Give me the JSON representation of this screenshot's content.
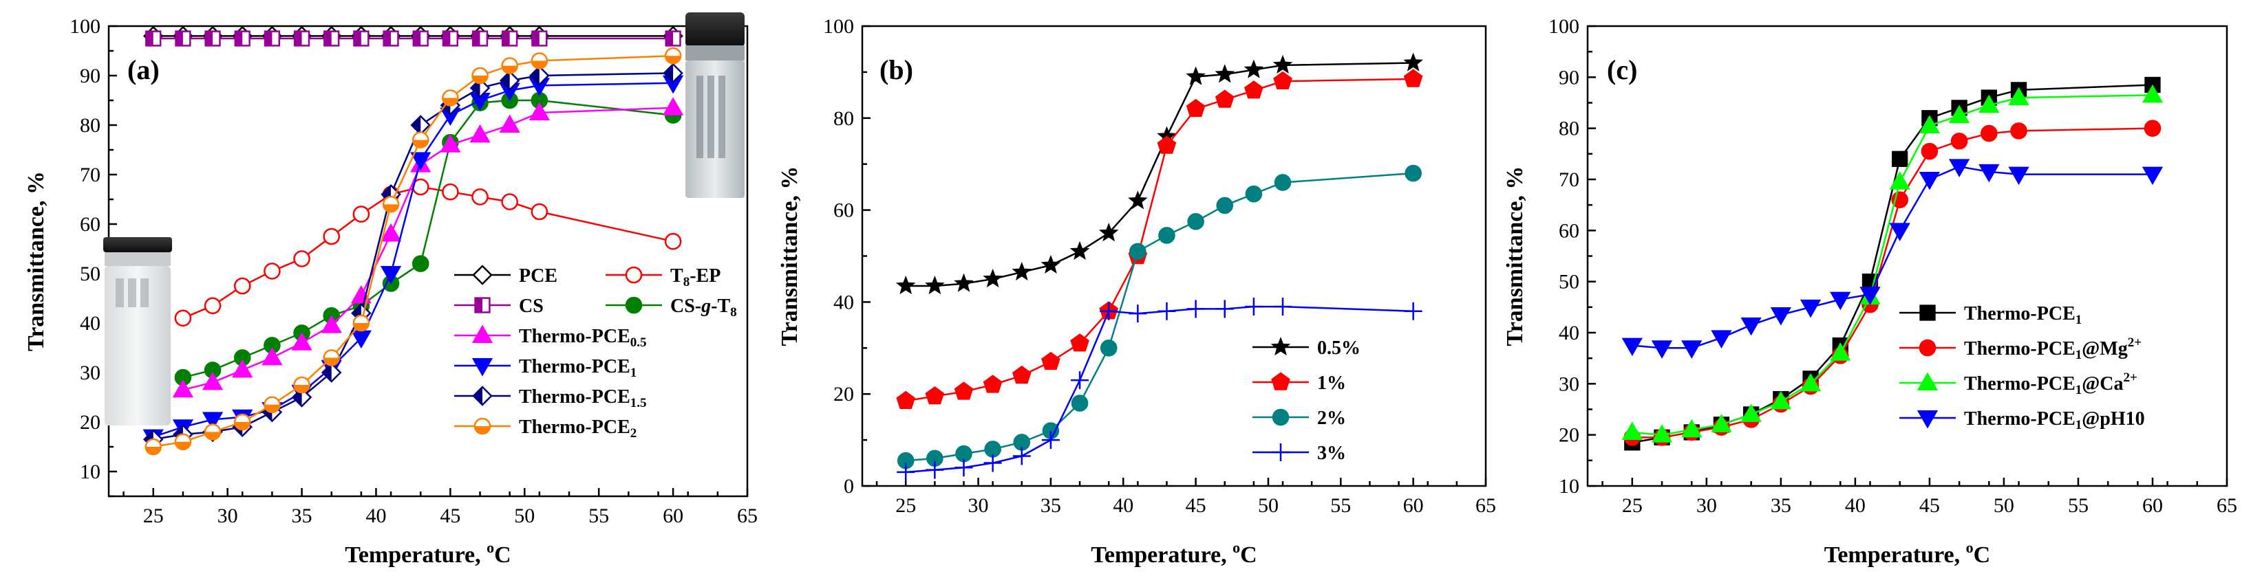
{
  "chart_data": [
    {
      "type": "line",
      "panel_label": "(a)",
      "xlabel": "Temperature, ",
      "xlabel_unit": "oC",
      "ylabel": "Transmittance, %",
      "xlim": [
        22,
        65
      ],
      "ylim": [
        5,
        100
      ],
      "xticks": [
        25,
        30,
        35,
        40,
        45,
        50,
        55,
        60,
        65
      ],
      "yticks": [
        10,
        20,
        30,
        40,
        50,
        60,
        70,
        80,
        90,
        100
      ],
      "legend_position": "center-right",
      "series": [
        {
          "name": "PCE",
          "color": "#000000",
          "marker": "diamond-open",
          "x": [
            25,
            27,
            29,
            31,
            33,
            35,
            37,
            39,
            41,
            43,
            45,
            47,
            49,
            51,
            60
          ],
          "y": [
            98,
            98,
            98,
            98,
            98,
            98,
            98,
            98,
            98,
            98,
            98,
            98,
            98,
            98,
            98
          ]
        },
        {
          "name": "T8-EP",
          "color": "#ff0000",
          "marker": "circle-open",
          "x": [
            27,
            29,
            31,
            33,
            35,
            37,
            39,
            41,
            43,
            45,
            47,
            49,
            51,
            60
          ],
          "y": [
            41,
            43.5,
            47.5,
            50.5,
            53,
            57.5,
            62,
            66,
            67.5,
            66.5,
            65.5,
            64.5,
            62.5,
            56.5
          ]
        },
        {
          "name": "CS",
          "color": "#990099",
          "marker": "square-half",
          "x": [
            25,
            27,
            29,
            31,
            33,
            35,
            37,
            39,
            41,
            43,
            45,
            47,
            49,
            51,
            60
          ],
          "y": [
            97.5,
            97.5,
            97.5,
            97.5,
            97.5,
            97.5,
            97.5,
            97.5,
            97.5,
            97.5,
            97.5,
            97.5,
            97.5,
            97.5,
            97.5
          ]
        },
        {
          "name": "CS-g-T8",
          "color": "#008000",
          "marker": "circle-filled",
          "x": [
            27,
            29,
            31,
            33,
            35,
            37,
            39,
            41,
            43,
            45,
            47,
            49,
            51,
            60
          ],
          "y": [
            29,
            30.5,
            33,
            35.5,
            38,
            41.5,
            43.5,
            48,
            52,
            76.5,
            84.5,
            85,
            85,
            82
          ]
        },
        {
          "name": "Thermo-PCE0.5",
          "color": "#ff00ff",
          "marker": "triangle-up",
          "x": [
            27,
            29,
            31,
            33,
            35,
            37,
            39,
            41,
            43,
            45,
            47,
            49,
            51,
            60
          ],
          "y": [
            26.5,
            28,
            30.5,
            33,
            36,
            39.5,
            45.5,
            58,
            72,
            76,
            78,
            80,
            82.5,
            83.5
          ]
        },
        {
          "name": "Thermo-PCE1",
          "color": "#0000ff",
          "marker": "triangle-down",
          "x": [
            25,
            27,
            29,
            31,
            33,
            35,
            37,
            39,
            41,
            43,
            45,
            47,
            49,
            51,
            60
          ],
          "y": [
            17,
            19,
            20.5,
            21,
            22.5,
            26,
            31,
            37,
            50,
            73,
            82,
            85,
            87,
            88,
            88.5
          ]
        },
        {
          "name": "Thermo-PCE1.5",
          "color": "#000080",
          "marker": "diamond-half",
          "x": [
            25,
            27,
            29,
            31,
            33,
            35,
            37,
            39,
            41,
            43,
            45,
            47,
            49,
            51,
            60
          ],
          "y": [
            16.5,
            17.5,
            18,
            19,
            22,
            25,
            30,
            42,
            66,
            80,
            84,
            87.5,
            89,
            90,
            90.5
          ]
        },
        {
          "name": "Thermo-PCE2",
          "color": "#ff8000",
          "marker": "circle-half",
          "x": [
            25,
            27,
            29,
            31,
            33,
            35,
            37,
            39,
            41,
            43,
            45,
            47,
            49,
            51,
            60
          ],
          "y": [
            15,
            16,
            18,
            20,
            23.5,
            27.5,
            33,
            40,
            64,
            77,
            85.5,
            90,
            92,
            93,
            94
          ]
        }
      ]
    },
    {
      "type": "line",
      "panel_label": "(b)",
      "xlabel": "Temperature, ",
      "xlabel_unit": "oC",
      "ylabel": "Transmittance,  %",
      "xlim": [
        22,
        65
      ],
      "ylim": [
        0,
        100
      ],
      "xticks": [
        25,
        30,
        35,
        40,
        45,
        50,
        55,
        60,
        65
      ],
      "yticks": [
        0,
        20,
        40,
        60,
        80,
        100
      ],
      "legend_position": "center-right",
      "series": [
        {
          "name": "0.5%",
          "color": "#000000",
          "marker": "star",
          "x": [
            25,
            27,
            29,
            31,
            33,
            35,
            37,
            39,
            41,
            43,
            45,
            47,
            49,
            51,
            60
          ],
          "y": [
            43.5,
            43.5,
            44,
            45,
            46.5,
            48,
            51,
            55,
            62,
            76,
            89,
            89.5,
            90.5,
            91.5,
            92
          ]
        },
        {
          "name": "1%",
          "color": "#ff0000",
          "marker": "pentagon",
          "x": [
            25,
            27,
            29,
            31,
            33,
            35,
            37,
            39,
            41,
            43,
            45,
            47,
            49,
            51,
            60
          ],
          "y": [
            18.5,
            19.5,
            20.5,
            22,
            24,
            27,
            31,
            38,
            50,
            74,
            82,
            84,
            86,
            88,
            88.5
          ]
        },
        {
          "name": "2%",
          "color": "#008080",
          "marker": "circle-filled",
          "x": [
            25,
            27,
            29,
            31,
            33,
            35,
            37,
            39,
            41,
            43,
            45,
            47,
            49,
            51,
            60
          ],
          "y": [
            5.5,
            6,
            7,
            8,
            9.5,
            12,
            18,
            30,
            51,
            54.5,
            57.5,
            61,
            63.5,
            66,
            68
          ]
        },
        {
          "name": "3%",
          "color": "#0000ff",
          "marker": "plus",
          "x": [
            25,
            27,
            29,
            31,
            33,
            35,
            37,
            39,
            41,
            43,
            45,
            47,
            49,
            51,
            60
          ],
          "y": [
            3,
            3.5,
            4,
            5,
            6.5,
            10,
            23,
            38,
            37.5,
            38,
            38.5,
            38.5,
            39,
            39,
            38
          ]
        }
      ]
    },
    {
      "type": "line",
      "panel_label": "(c)",
      "xlabel": "Temperature, ",
      "xlabel_unit": "oC",
      "ylabel": "Transmittance, %",
      "xlim": [
        22,
        65
      ],
      "ylim": [
        10,
        100
      ],
      "xticks": [
        25,
        30,
        35,
        40,
        45,
        50,
        55,
        60,
        65
      ],
      "yticks": [
        10,
        20,
        30,
        40,
        50,
        60,
        70,
        80,
        90,
        100
      ],
      "legend_position": "center-right",
      "series": [
        {
          "name": "Thermo-PCE1",
          "color": "#000000",
          "marker": "square-filled",
          "x": [
            25,
            27,
            29,
            31,
            33,
            35,
            37,
            39,
            41,
            43,
            45,
            47,
            49,
            51,
            60
          ],
          "y": [
            18.5,
            19.5,
            20.5,
            22,
            24,
            27,
            31,
            37.5,
            50,
            74,
            82,
            84,
            86,
            87.5,
            88.5
          ]
        },
        {
          "name": "Thermo-PCE1@Mg2+",
          "color": "#ff0000",
          "marker": "circle-filled",
          "x": [
            25,
            27,
            29,
            31,
            33,
            35,
            37,
            39,
            41,
            43,
            45,
            47,
            49,
            51,
            60
          ],
          "y": [
            19.5,
            19.5,
            20.5,
            21.5,
            23,
            26,
            29.5,
            35.5,
            45.5,
            66,
            75.5,
            77.5,
            79,
            79.5,
            80
          ]
        },
        {
          "name": "Thermo-PCE1@Ca2+",
          "color": "#00ff00",
          "marker": "triangle-up",
          "x": [
            25,
            27,
            29,
            31,
            33,
            35,
            37,
            39,
            41,
            43,
            45,
            47,
            49,
            51,
            60
          ],
          "y": [
            20.5,
            20,
            21,
            22,
            24,
            26.5,
            30,
            36,
            47,
            69.5,
            80.5,
            82.5,
            84.5,
            86,
            86.5
          ]
        },
        {
          "name": "Thermo-PCE1@pH10",
          "color": "#0000ff",
          "marker": "triangle-down",
          "x": [
            25,
            27,
            29,
            31,
            33,
            35,
            37,
            39,
            41,
            43,
            45,
            47,
            49,
            51,
            60
          ],
          "y": [
            37.5,
            37,
            37,
            39,
            41.5,
            43.5,
            45,
            46.5,
            47.5,
            60,
            70,
            72.5,
            71.5,
            71,
            71
          ]
        }
      ]
    }
  ]
}
